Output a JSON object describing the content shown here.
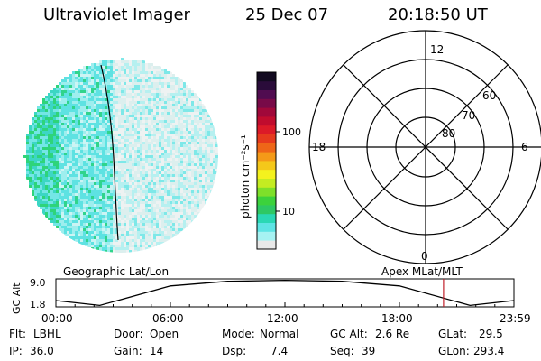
{
  "header": {
    "instrument": "Ultraviolet Imager",
    "date": "25 Dec 07",
    "time": "20:18:50 UT"
  },
  "colorbar": {
    "unit_label": "photon cm⁻²s⁻¹",
    "ticks": [
      "100",
      "10"
    ],
    "colors": [
      "#e8e8e8",
      "#a6f2f2",
      "#5ee4e4",
      "#2ad8b4",
      "#2ec864",
      "#3cd23c",
      "#7ee02a",
      "#c4ec22",
      "#f4f21e",
      "#f4c81a",
      "#f49a18",
      "#ee6618",
      "#e63a1e",
      "#dc1a28",
      "#c00c2e",
      "#a0083a",
      "#780a48",
      "#500c50",
      "#2a0c3a",
      "#120a20"
    ]
  },
  "polar_plot": {
    "hour_labels": {
      "top": "12",
      "left": "18",
      "right": "6",
      "bottom": "0"
    },
    "lat_labels": [
      "60",
      "70",
      "80"
    ]
  },
  "altitude_panel": {
    "axis_label": "GC Alt",
    "y_ticks": [
      "9.0",
      "1.8"
    ],
    "left_title": "Geographic Lat/Lon",
    "right_title": "Apex MLat/MLT",
    "x_ticks": [
      "00:00",
      "06:00",
      "12:00",
      "18:00",
      "23:59"
    ],
    "curve": {
      "hours": [
        0,
        2.3,
        6,
        9,
        12,
        15,
        18,
        21.7,
        23.99
      ],
      "alt_re": [
        3.2,
        1.8,
        7.4,
        8.7,
        9.0,
        8.7,
        7.4,
        1.8,
        3.2
      ]
    },
    "current_hour": 20.31,
    "marker_color": "#c0202a"
  },
  "status": {
    "row1": [
      {
        "key": "Flt:",
        "val": "LBHL"
      },
      {
        "key": "Door:",
        "val": "Open"
      },
      {
        "key": "Mode:",
        "val": "Normal"
      },
      {
        "key": "GC Alt:",
        "val": "2.6 Re"
      },
      {
        "key": "GLat:",
        "val": "29.5"
      }
    ],
    "row2": [
      {
        "key": "IP:",
        "val": "36.0"
      },
      {
        "key": "Gain:",
        "val": "14"
      },
      {
        "key": "Dsp:",
        "val": "7.4"
      },
      {
        "key": "Seq:",
        "val": "39"
      },
      {
        "key": "GLon:",
        "val": "293.4"
      }
    ]
  }
}
